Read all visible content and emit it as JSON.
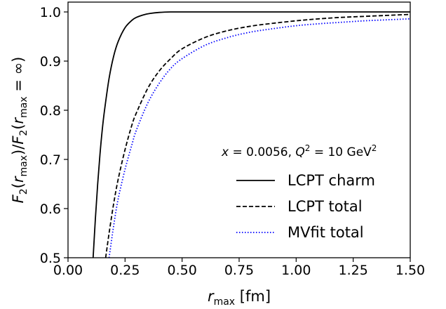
{
  "chart_data": {
    "type": "line",
    "xlabel": "r_max [fm]",
    "ylabel": "F2(r_max)/F2(r_max = ∞)",
    "xlim": [
      0.0,
      1.5
    ],
    "ylim": [
      0.5,
      1.02
    ],
    "xticks": [
      "0.00",
      "0.25",
      "0.50",
      "0.75",
      "1.00",
      "1.25",
      "1.50"
    ],
    "yticks": [
      "0.5",
      "0.6",
      "0.7",
      "0.8",
      "0.9",
      "1.0"
    ],
    "grid": false,
    "legend_position": "right",
    "annotation": "x = 0.0056, Q² = 10 GeV²",
    "series": [
      {
        "name": "LCPT charm",
        "style": "solid",
        "color": "#000000",
        "x": [
          0.11,
          0.12,
          0.13,
          0.14,
          0.15,
          0.16,
          0.18,
          0.2,
          0.22,
          0.25,
          0.28,
          0.3,
          0.33,
          0.36,
          0.4,
          0.45,
          0.5,
          0.6,
          0.75,
          1.0,
          1.5
        ],
        "y": [
          0.5,
          0.58,
          0.65,
          0.71,
          0.76,
          0.8,
          0.865,
          0.91,
          0.94,
          0.968,
          0.983,
          0.989,
          0.994,
          0.997,
          0.999,
          1.0,
          1.0,
          1.0,
          1.0,
          1.0,
          1.0
        ]
      },
      {
        "name": "LCPT total",
        "style": "dashed",
        "color": "#000000",
        "x": [
          0.165,
          0.18,
          0.2,
          0.22,
          0.25,
          0.28,
          0.3,
          0.35,
          0.4,
          0.45,
          0.5,
          0.6,
          0.7,
          0.8,
          0.9,
          1.0,
          1.1,
          1.2,
          1.3,
          1.4,
          1.5
        ],
        "y": [
          0.5,
          0.55,
          0.61,
          0.66,
          0.72,
          0.77,
          0.795,
          0.845,
          0.88,
          0.905,
          0.925,
          0.948,
          0.962,
          0.971,
          0.977,
          0.982,
          0.986,
          0.989,
          0.991,
          0.993,
          0.995
        ]
      },
      {
        "name": "MVfit total",
        "style": "dotted",
        "color": "#0000ff",
        "x": [
          0.18,
          0.2,
          0.22,
          0.25,
          0.28,
          0.3,
          0.35,
          0.4,
          0.45,
          0.5,
          0.6,
          0.7,
          0.8,
          0.9,
          1.0,
          1.1,
          1.2,
          1.3,
          1.4,
          1.5
        ],
        "y": [
          0.5,
          0.565,
          0.62,
          0.68,
          0.73,
          0.76,
          0.815,
          0.855,
          0.885,
          0.905,
          0.932,
          0.948,
          0.959,
          0.966,
          0.972,
          0.976,
          0.979,
          0.982,
          0.984,
          0.986
        ]
      }
    ]
  }
}
